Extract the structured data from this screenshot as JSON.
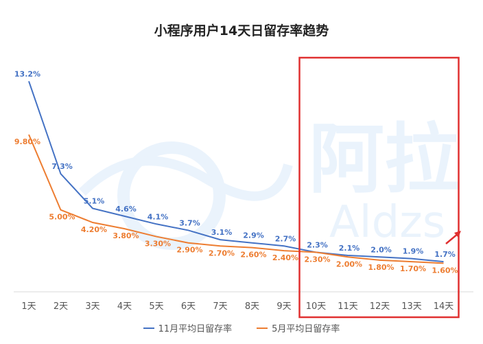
{
  "chart_data": {
    "type": "line",
    "title": "小程序用户14天日留存率趋势",
    "categories": [
      "1天",
      "2天",
      "3天",
      "4天",
      "5天",
      "6天",
      "7天",
      "8天",
      "9天",
      "10天",
      "11天",
      "12天",
      "13天",
      "14天"
    ],
    "ylim": [
      0,
      14
    ],
    "grid": false,
    "legend_position": "bottom",
    "series": [
      {
        "name": "11月平均日留存率",
        "color": "#4472C4",
        "values": [
          13.2,
          7.3,
          5.1,
          4.6,
          4.1,
          3.7,
          3.1,
          2.9,
          2.7,
          2.3,
          2.1,
          2.0,
          1.9,
          1.7
        ],
        "labels": [
          "13.2%",
          "7.3%",
          "5.1%",
          "4.6%",
          "4.1%",
          "3.7%",
          "3.1%",
          "2.9%",
          "2.7%",
          "2.3%",
          "2.1%",
          "2.0%",
          "1.9%",
          "1.7%"
        ]
      },
      {
        "name": "5月平均日留存率",
        "color": "#ED7D31",
        "values": [
          9.8,
          5.0,
          4.2,
          3.8,
          3.3,
          2.9,
          2.7,
          2.6,
          2.4,
          2.3,
          2.0,
          1.8,
          1.7,
          1.6
        ],
        "labels": [
          "9.80%",
          "5.00%",
          "4.20%",
          "3.80%",
          "3.30%",
          "2.90%",
          "2.70%",
          "2.60%",
          "2.40%",
          "2.30%",
          "2.00%",
          "1.80%",
          "1.70%",
          "1.60%"
        ]
      }
    ],
    "highlight": {
      "from_category": "10天",
      "to_category": "14天",
      "color": "#E03030"
    }
  },
  "watermark": {
    "text_cn": "阿拉",
    "text_en": "Aldzs"
  }
}
